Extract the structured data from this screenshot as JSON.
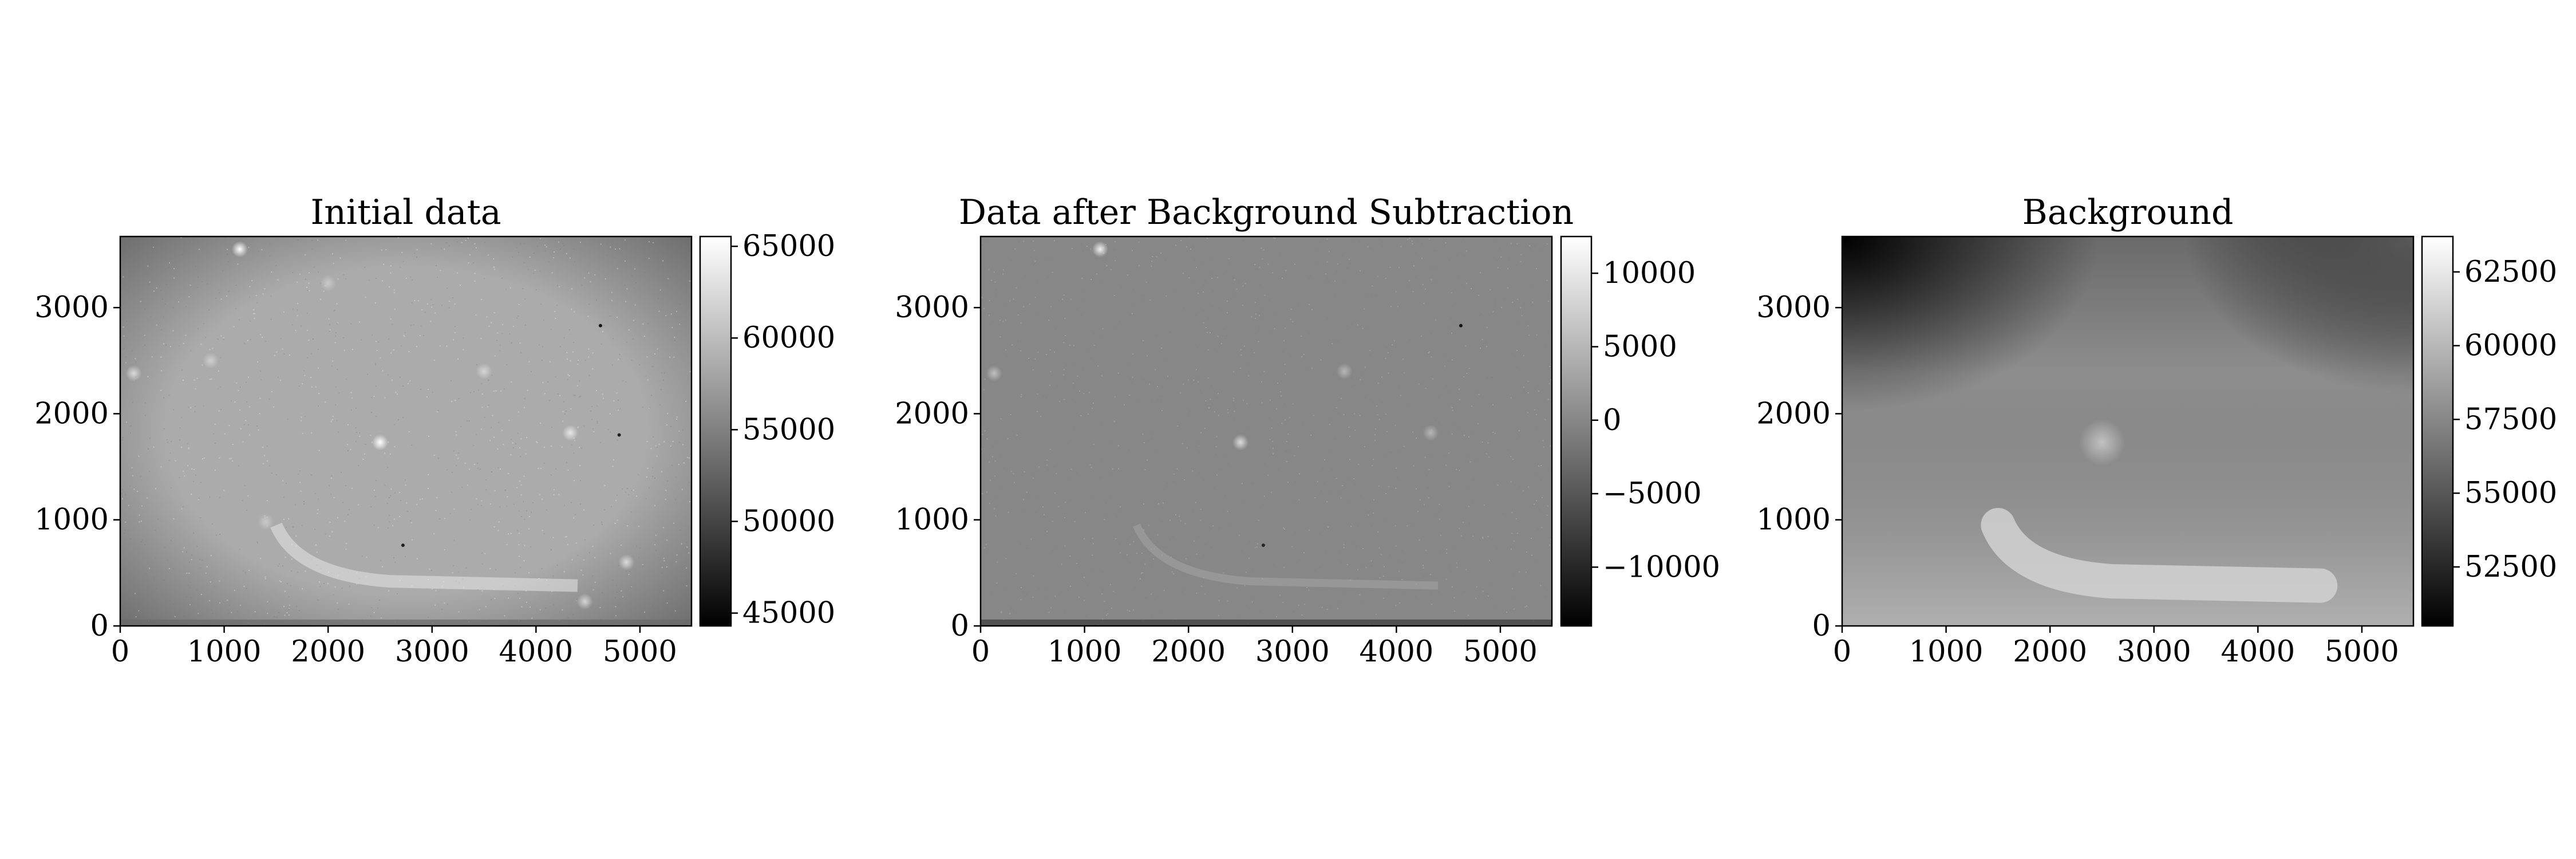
{
  "chart_data": [
    {
      "type": "heatmap",
      "title": "Initial data",
      "xlabel": "",
      "ylabel": "",
      "colormap": "gray",
      "xlim": [
        0,
        5496
      ],
      "ylim": [
        0,
        3670
      ],
      "xticks": [
        0,
        1000,
        2000,
        3000,
        4000,
        5000
      ],
      "yticks": [
        0,
        1000,
        2000,
        3000
      ],
      "colorbar": {
        "min": 44300,
        "max": 65535,
        "ticks": [
          45000,
          50000,
          55000,
          60000,
          65000
        ]
      },
      "features": {
        "stars": [
          {
            "x": 1150,
            "y": 3550,
            "value": 65535
          },
          {
            "x": 2500,
            "y": 1730,
            "value": 65535
          },
          {
            "x": 4330,
            "y": 1820,
            "value": 63500
          },
          {
            "x": 130,
            "y": 2380,
            "value": 62500
          },
          {
            "x": 3500,
            "y": 2400,
            "value": 62000
          },
          {
            "x": 870,
            "y": 2500,
            "value": 61500
          },
          {
            "x": 2000,
            "y": 3230,
            "value": 61000
          },
          {
            "x": 4870,
            "y": 600,
            "value": 62500
          },
          {
            "x": 4470,
            "y": 230,
            "value": 62000
          },
          {
            "x": 1400,
            "y": 980,
            "value": 61000
          }
        ],
        "dark_spots": [
          {
            "x": 4620,
            "y": 2830,
            "value": 46000
          },
          {
            "x": 4800,
            "y": 1800,
            "value": 47000
          },
          {
            "x": 2720,
            "y": 760,
            "value": 47000
          }
        ]
      }
    },
    {
      "type": "heatmap",
      "title": "Data after Background Subtraction",
      "xlabel": "",
      "ylabel": "",
      "colormap": "gray",
      "xlim": [
        0,
        5496
      ],
      "ylim": [
        0,
        3670
      ],
      "xticks": [
        0,
        1000,
        2000,
        3000,
        4000,
        5000
      ],
      "yticks": [
        0,
        1000,
        2000,
        3000
      ],
      "colorbar": {
        "min": -14000,
        "max": 12500,
        "ticks": [
          10000,
          5000,
          0,
          -5000,
          -10000
        ]
      },
      "colorbar_tick_labels": [
        "10000",
        "5000",
        "0",
        "−5000",
        "−10000"
      ],
      "features": {
        "stars": [
          {
            "x": 1150,
            "y": 3550,
            "value": 11000
          },
          {
            "x": 2500,
            "y": 1730,
            "value": 9000
          },
          {
            "x": 130,
            "y": 2380,
            "value": 6000
          },
          {
            "x": 3500,
            "y": 2400,
            "value": 5000
          },
          {
            "x": 4330,
            "y": 1820,
            "value": 5000
          }
        ],
        "dark_spots": [
          {
            "x": 4620,
            "y": 2830,
            "value": -12000
          },
          {
            "x": 2720,
            "y": 760,
            "value": -10000
          }
        ]
      }
    },
    {
      "type": "heatmap",
      "title": "Background",
      "xlabel": "",
      "ylabel": "",
      "colormap": "gray",
      "xlim": [
        0,
        5496
      ],
      "ylim": [
        0,
        3670
      ],
      "xticks": [
        0,
        1000,
        2000,
        3000,
        4000,
        5000
      ],
      "yticks": [
        0,
        1000,
        2000,
        3000
      ],
      "colorbar": {
        "min": 50500,
        "max": 63700,
        "ticks": [
          52500,
          55000,
          57500,
          60000,
          62500
        ]
      },
      "features": {
        "corners": {
          "top_left": 50500,
          "top_right": 55000,
          "bottom_left": 58000,
          "bottom_right": 60500
        },
        "center_level": 57800,
        "bright_blob": {
          "x": 2500,
          "y": 1730,
          "value": 60500
        },
        "bright_band_level": 61500
      }
    }
  ]
}
